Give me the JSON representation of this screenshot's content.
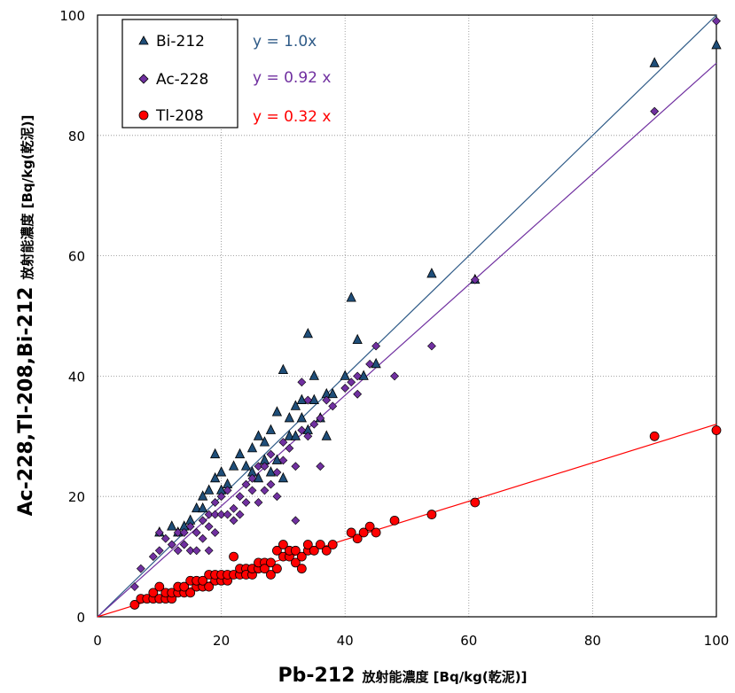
{
  "chart_data": {
    "type": "scatter",
    "xlim": [
      0,
      100
    ],
    "ylim": [
      0,
      100
    ],
    "x_ticks": [
      "0",
      "20",
      "40",
      "60",
      "80",
      "100"
    ],
    "y_ticks": [
      "0",
      "20",
      "40",
      "60",
      "80",
      "100"
    ],
    "grid": "dotted",
    "legend_position": "top-left",
    "xlabel": "Pb-212",
    "xlabel_suffix": "放射能濃度 [Bq/kg(乾泥)]",
    "ylabel": "Ac-228,Tl-208,Bi-212",
    "ylabel_suffix": "放射能濃度 [Bq/kg(乾泥)]",
    "series": [
      {
        "name": "Bi-212",
        "marker": "triangle",
        "color": "#1f4e79",
        "trendline": {
          "slope": 1.0,
          "label": "y = 1.0x",
          "color": "#2e5a87"
        },
        "points": [
          [
            10,
            14
          ],
          [
            12,
            15
          ],
          [
            13,
            14
          ],
          [
            14,
            15
          ],
          [
            15,
            16
          ],
          [
            16,
            18
          ],
          [
            17,
            20
          ],
          [
            17,
            18
          ],
          [
            18,
            21
          ],
          [
            19,
            23
          ],
          [
            19,
            27
          ],
          [
            20,
            24
          ],
          [
            20,
            21
          ],
          [
            21,
            22
          ],
          [
            22,
            25
          ],
          [
            23,
            27
          ],
          [
            24,
            25
          ],
          [
            25,
            28
          ],
          [
            25,
            24
          ],
          [
            26,
            30
          ],
          [
            26,
            23
          ],
          [
            27,
            29
          ],
          [
            27,
            26
          ],
          [
            28,
            24
          ],
          [
            28,
            31
          ],
          [
            29,
            34
          ],
          [
            29,
            26
          ],
          [
            30,
            23
          ],
          [
            30,
            41
          ],
          [
            31,
            30
          ],
          [
            31,
            33
          ],
          [
            32,
            35
          ],
          [
            32,
            30
          ],
          [
            33,
            36
          ],
          [
            33,
            33
          ],
          [
            34,
            47
          ],
          [
            34,
            31
          ],
          [
            35,
            36
          ],
          [
            35,
            40
          ],
          [
            36,
            33
          ],
          [
            37,
            30
          ],
          [
            37,
            37
          ],
          [
            38,
            37
          ],
          [
            40,
            40
          ],
          [
            41,
            53
          ],
          [
            42,
            46
          ],
          [
            43,
            40
          ],
          [
            45,
            42
          ],
          [
            54,
            57
          ],
          [
            61,
            56
          ],
          [
            90,
            92
          ],
          [
            100,
            95
          ]
        ]
      },
      {
        "name": "Ac-228",
        "marker": "diamond",
        "color": "#7030a0",
        "trendline": {
          "slope": 0.92,
          "label": "y = 0.92 x",
          "color": "#7030a0"
        },
        "points": [
          [
            6,
            5
          ],
          [
            7,
            8
          ],
          [
            9,
            10
          ],
          [
            10,
            11
          ],
          [
            10,
            14
          ],
          [
            11,
            13
          ],
          [
            12,
            12
          ],
          [
            13,
            11
          ],
          [
            13,
            14
          ],
          [
            14,
            12
          ],
          [
            14,
            14
          ],
          [
            15,
            11
          ],
          [
            15,
            15
          ],
          [
            16,
            14
          ],
          [
            16,
            11
          ],
          [
            17,
            13
          ],
          [
            17,
            16
          ],
          [
            18,
            17
          ],
          [
            18,
            11
          ],
          [
            18,
            15
          ],
          [
            19,
            19
          ],
          [
            19,
            17
          ],
          [
            19,
            14
          ],
          [
            20,
            17
          ],
          [
            20,
            20
          ],
          [
            21,
            17
          ],
          [
            21,
            21
          ],
          [
            22,
            18
          ],
          [
            22,
            16
          ],
          [
            23,
            20
          ],
          [
            23,
            17
          ],
          [
            24,
            19
          ],
          [
            24,
            22
          ],
          [
            25,
            21
          ],
          [
            25,
            23
          ],
          [
            26,
            19
          ],
          [
            26,
            25
          ],
          [
            27,
            21
          ],
          [
            27,
            25
          ],
          [
            28,
            22
          ],
          [
            28,
            27
          ],
          [
            29,
            20
          ],
          [
            29,
            24
          ],
          [
            30,
            26
          ],
          [
            30,
            29
          ],
          [
            31,
            28
          ],
          [
            32,
            25
          ],
          [
            32,
            16
          ],
          [
            33,
            31
          ],
          [
            33,
            39
          ],
          [
            34,
            30
          ],
          [
            34,
            36
          ],
          [
            35,
            32
          ],
          [
            36,
            25
          ],
          [
            36,
            33
          ],
          [
            37,
            36
          ],
          [
            38,
            35
          ],
          [
            40,
            38
          ],
          [
            41,
            39
          ],
          [
            42,
            37
          ],
          [
            42,
            40
          ],
          [
            44,
            42
          ],
          [
            45,
            45
          ],
          [
            48,
            40
          ],
          [
            54,
            45
          ],
          [
            61,
            56
          ],
          [
            90,
            84
          ],
          [
            100,
            99
          ]
        ]
      },
      {
        "name": "Tl-208",
        "marker": "circle",
        "color": "#ff0000",
        "trendline": {
          "slope": 0.32,
          "label": "y = 0.32 x",
          "color": "#ff0000"
        },
        "points": [
          [
            6,
            2
          ],
          [
            7,
            3
          ],
          [
            8,
            3
          ],
          [
            9,
            3
          ],
          [
            9,
            4
          ],
          [
            10,
            3
          ],
          [
            10,
            5
          ],
          [
            11,
            3
          ],
          [
            11,
            4
          ],
          [
            12,
            3
          ],
          [
            12,
            4
          ],
          [
            13,
            4
          ],
          [
            13,
            5
          ],
          [
            14,
            4
          ],
          [
            14,
            5
          ],
          [
            15,
            4
          ],
          [
            15,
            6
          ],
          [
            16,
            5
          ],
          [
            16,
            6
          ],
          [
            17,
            5
          ],
          [
            17,
            6
          ],
          [
            18,
            5
          ],
          [
            18,
            7
          ],
          [
            19,
            6
          ],
          [
            19,
            7
          ],
          [
            20,
            6
          ],
          [
            20,
            7
          ],
          [
            21,
            6
          ],
          [
            21,
            7
          ],
          [
            22,
            7
          ],
          [
            22,
            10
          ],
          [
            23,
            7
          ],
          [
            23,
            8
          ],
          [
            24,
            8
          ],
          [
            24,
            7
          ],
          [
            25,
            7
          ],
          [
            25,
            8
          ],
          [
            26,
            8
          ],
          [
            26,
            9
          ],
          [
            27,
            9
          ],
          [
            27,
            8
          ],
          [
            28,
            9
          ],
          [
            28,
            7
          ],
          [
            29,
            8
          ],
          [
            29,
            11
          ],
          [
            30,
            10
          ],
          [
            30,
            12
          ],
          [
            31,
            10
          ],
          [
            31,
            11
          ],
          [
            32,
            11
          ],
          [
            32,
            9
          ],
          [
            33,
            10
          ],
          [
            33,
            8
          ],
          [
            34,
            11
          ],
          [
            34,
            12
          ],
          [
            35,
            11
          ],
          [
            36,
            12
          ],
          [
            37,
            11
          ],
          [
            38,
            12
          ],
          [
            41,
            14
          ],
          [
            42,
            13
          ],
          [
            43,
            14
          ],
          [
            44,
            15
          ],
          [
            45,
            14
          ],
          [
            48,
            16
          ],
          [
            54,
            17
          ],
          [
            61,
            19
          ],
          [
            90,
            30
          ],
          [
            100,
            31
          ]
        ]
      }
    ]
  }
}
